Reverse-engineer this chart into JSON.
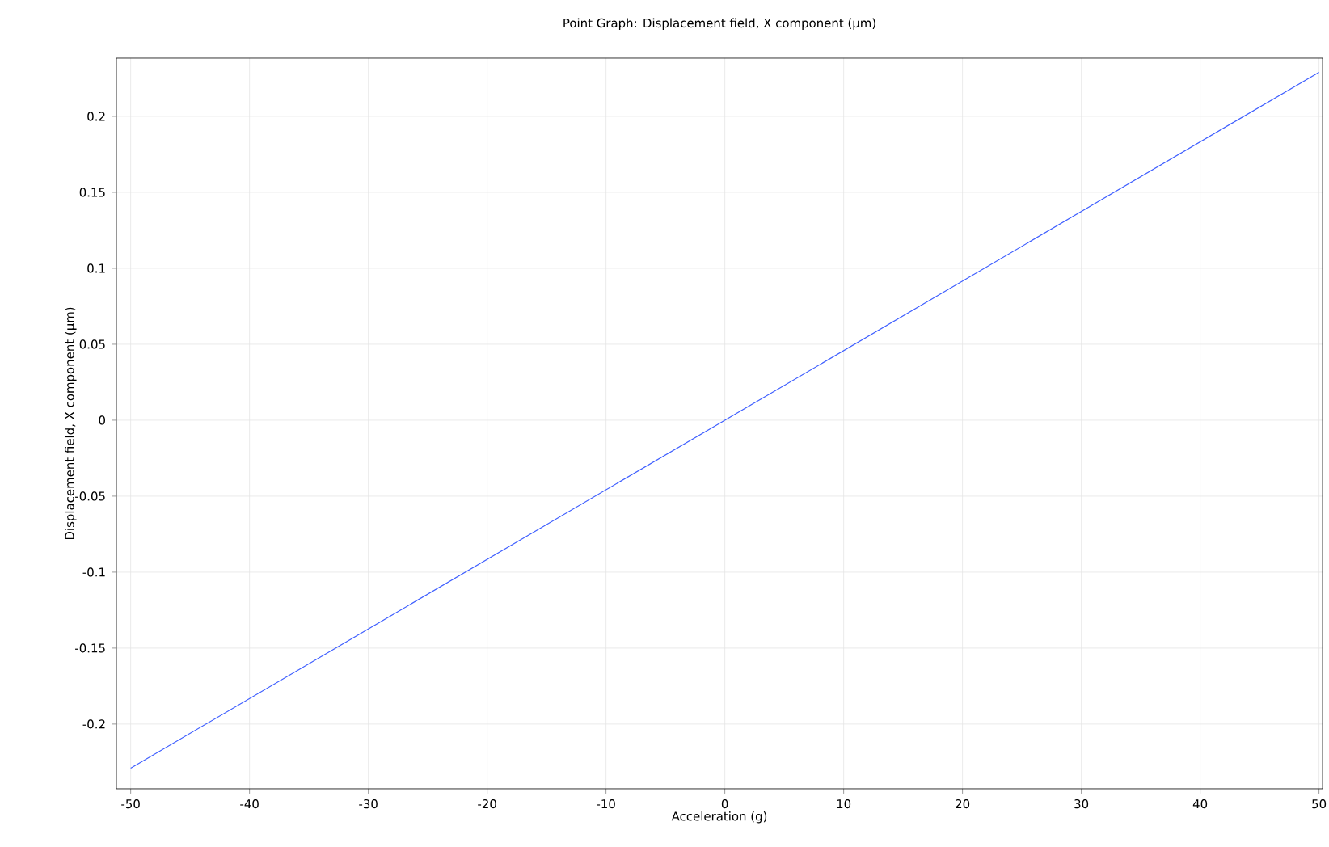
{
  "chart_data": {
    "type": "line",
    "title": "Point Graph: Displacement field, X component (µm)",
    "xlabel": "Acceleration (g)",
    "ylabel": "Displacement field, X component (µm)",
    "x": [
      -50,
      0,
      50
    ],
    "series": [
      {
        "color": "#3f5fff",
        "values": [
          -0.229,
          0,
          0.229
        ]
      }
    ],
    "xlim": [
      -51.2,
      50.3
    ],
    "ylim": [
      -0.2426,
      0.2383
    ],
    "xticks": [
      -50,
      -40,
      -30,
      -20,
      -10,
      0,
      10,
      20,
      30,
      40,
      50
    ],
    "yticks": [
      -0.2,
      -0.15,
      -0.1,
      -0.05,
      0,
      0.05,
      0.1,
      0.15,
      0.2
    ],
    "grid": true,
    "marker": "none",
    "line_style": "solid"
  }
}
